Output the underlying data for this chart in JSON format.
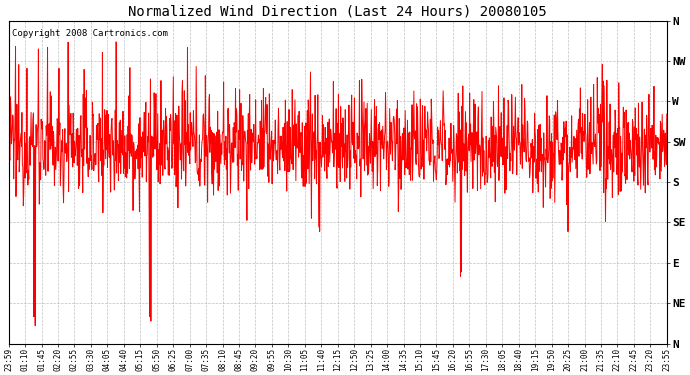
{
  "title": "Normalized Wind Direction (Last 24 Hours) 20080105",
  "copyright_text": "Copyright 2008 Cartronics.com",
  "line_color": "#ff0000",
  "background_color": "#ffffff",
  "plot_bg_color": "#ffffff",
  "grid_color": "#b0b0b0",
  "ytick_labels": [
    "N",
    "NW",
    "W",
    "SW",
    "S",
    "SE",
    "E",
    "NE",
    "N"
  ],
  "ytick_values": [
    360,
    315,
    270,
    225,
    180,
    135,
    90,
    45,
    0
  ],
  "ylim": [
    0,
    360
  ],
  "xtick_labels": [
    "23:59",
    "01:10",
    "01:45",
    "02:20",
    "02:55",
    "03:30",
    "04:05",
    "04:40",
    "05:15",
    "05:50",
    "06:25",
    "07:00",
    "07:35",
    "08:10",
    "08:45",
    "09:20",
    "09:55",
    "10:30",
    "11:05",
    "11:40",
    "12:15",
    "12:50",
    "13:25",
    "14:00",
    "14:35",
    "15:10",
    "15:45",
    "16:20",
    "16:55",
    "17:30",
    "18:05",
    "18:40",
    "19:15",
    "19:50",
    "20:25",
    "21:00",
    "21:35",
    "22:10",
    "22:45",
    "23:20",
    "23:55"
  ],
  "num_points": 1440,
  "mean_value": 220,
  "noise_scale": 28
}
